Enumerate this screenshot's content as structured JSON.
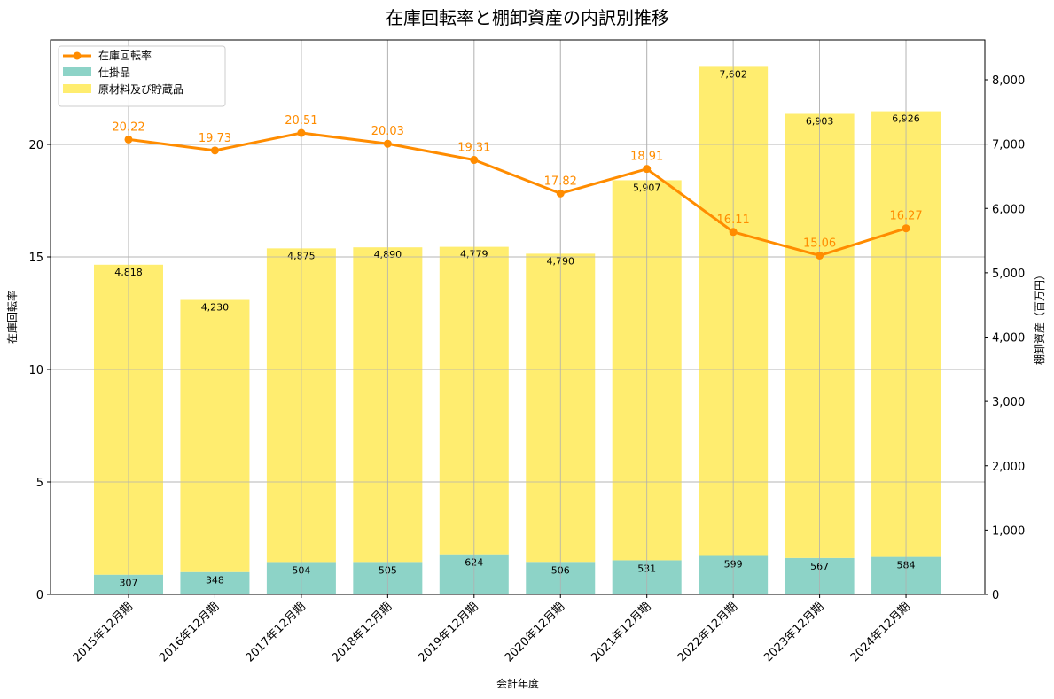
{
  "chart_data": {
    "type": "bar+line",
    "title": "在庫回転率と棚卸資産の内訳別推移",
    "xlabel": "会計年度",
    "ylabel_left": "在庫回転率",
    "ylabel_right": "棚卸資産（百万円）",
    "categories": [
      "2015年12月期",
      "2016年12月期",
      "2017年12月期",
      "2018年12月期",
      "2019年12月期",
      "2020年12月期",
      "2021年12月期",
      "2022年12月期",
      "2023年12月期",
      "2024年12月期"
    ],
    "series": [
      {
        "name": "仕掛品",
        "type": "stacked-bar",
        "axis": "right",
        "color": "#8dd3c7",
        "values": [
          307,
          348,
          504,
          505,
          624,
          506,
          531,
          599,
          567,
          584
        ]
      },
      {
        "name": "原材料及び貯蔵品",
        "type": "stacked-bar",
        "axis": "right",
        "color": "#ffed6f",
        "values": [
          4818,
          4230,
          4875,
          4890,
          4779,
          4790,
          5907,
          7602,
          6903,
          6926
        ]
      },
      {
        "name": "在庫回転率",
        "type": "line",
        "axis": "left",
        "color": "#ff8c00",
        "values": [
          20.22,
          19.73,
          20.51,
          20.03,
          19.31,
          17.82,
          18.91,
          16.11,
          15.06,
          16.27
        ]
      }
    ],
    "ylim_left": [
      0,
      24.6
    ],
    "ylim_right": [
      0,
      8620
    ],
    "yticks_left": [
      "0",
      "5",
      "10",
      "15",
      "20"
    ],
    "yticks_right": [
      "0",
      "1,000",
      "2,000",
      "3,000",
      "4,000",
      "5,000",
      "6,000",
      "7,000",
      "8,000"
    ],
    "grid": true,
    "legend_position": "upper left"
  },
  "legend": {
    "items": [
      "在庫回転率",
      "仕掛品",
      "原材料及び貯蔵品"
    ]
  }
}
